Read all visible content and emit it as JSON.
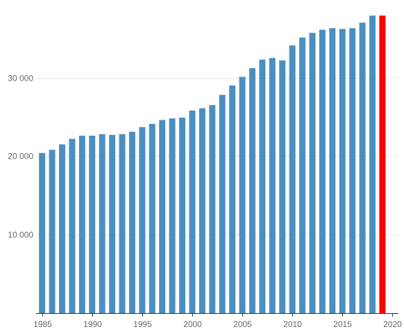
{
  "chart_data": {
    "type": "bar",
    "title": "",
    "xlabel": "",
    "ylabel": "",
    "x": [
      1985,
      1986,
      1987,
      1988,
      1989,
      1990,
      1991,
      1992,
      1993,
      1994,
      1995,
      1996,
      1997,
      1998,
      1999,
      2000,
      2001,
      2002,
      2003,
      2004,
      2005,
      2006,
      2007,
      2008,
      2009,
      2010,
      2011,
      2012,
      2013,
      2014,
      2015,
      2016,
      2017,
      2018,
      2019
    ],
    "values": [
      20400,
      20800,
      21500,
      22200,
      22600,
      22600,
      22800,
      22700,
      22800,
      23100,
      23700,
      24100,
      24600,
      24800,
      24900,
      25800,
      26100,
      26500,
      27800,
      29000,
      30100,
      31200,
      32300,
      32500,
      32200,
      34100,
      35100,
      35700,
      36100,
      36300,
      36200,
      36300,
      37000,
      37900,
      37900
    ],
    "highlight_index": 34,
    "colors": {
      "bar": "#4a8fc0",
      "highlight": "#ff0000",
      "grid": "#e6e6e6",
      "axis": "#333333",
      "tick_text": "#666666"
    },
    "ylim": [
      0,
      39000
    ],
    "xlim": [
      1984.4,
      2020.6
    ],
    "yticks": [
      10000,
      20000,
      30000
    ],
    "ytick_labels": [
      "10 000",
      "20 000",
      "30 000"
    ],
    "xticks": [
      1985,
      1990,
      1995,
      2000,
      2005,
      2010,
      2015,
      2020
    ],
    "xtick_labels": [
      "1985",
      "1990",
      "1995",
      "2000",
      "2005",
      "2010",
      "2015",
      "2020"
    ],
    "grid": true,
    "legend": "none"
  }
}
